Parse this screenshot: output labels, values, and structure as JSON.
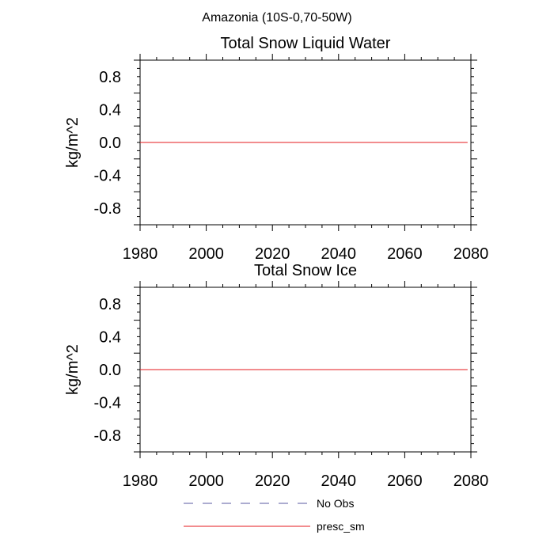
{
  "suptitle": "Amazonia (10S-0,70-50W)",
  "legend": [
    {
      "name": "No Obs",
      "color": "#5a5aa0",
      "dash": true
    },
    {
      "name": "presc_sm",
      "color": "#e41a1c",
      "dash": false
    }
  ],
  "chart_data": [
    {
      "type": "line",
      "title": "Total Snow Liquid Water",
      "ylabel": "kg/m^2",
      "xlabel": "",
      "xlim": [
        1980,
        2080
      ],
      "ylim": [
        -1,
        1
      ],
      "xticks": [
        1980,
        2000,
        2020,
        2040,
        2060,
        2080
      ],
      "yticks": [
        -0.8,
        -0.4,
        0.0,
        0.4,
        0.8
      ],
      "ytick_labels": [
        "-0.8",
        "-0.4",
        "0.0",
        "0.4",
        "0.8"
      ],
      "series": [
        {
          "name": "presc_sm",
          "color": "#e41a1c",
          "x": [
            1980,
            2079
          ],
          "y": [
            0,
            0
          ]
        }
      ]
    },
    {
      "type": "line",
      "title": "Total Snow Ice",
      "ylabel": "kg/m^2",
      "xlabel": "",
      "xlim": [
        1980,
        2080
      ],
      "ylim": [
        -1,
        1
      ],
      "xticks": [
        1980,
        2000,
        2020,
        2040,
        2060,
        2080
      ],
      "yticks": [
        -0.8,
        -0.4,
        0.0,
        0.4,
        0.8
      ],
      "ytick_labels": [
        "-0.8",
        "-0.4",
        "0.0",
        "0.4",
        "0.8"
      ],
      "series": [
        {
          "name": "presc_sm",
          "color": "#e41a1c",
          "x": [
            1980,
            2079
          ],
          "y": [
            0,
            0
          ]
        }
      ]
    }
  ]
}
